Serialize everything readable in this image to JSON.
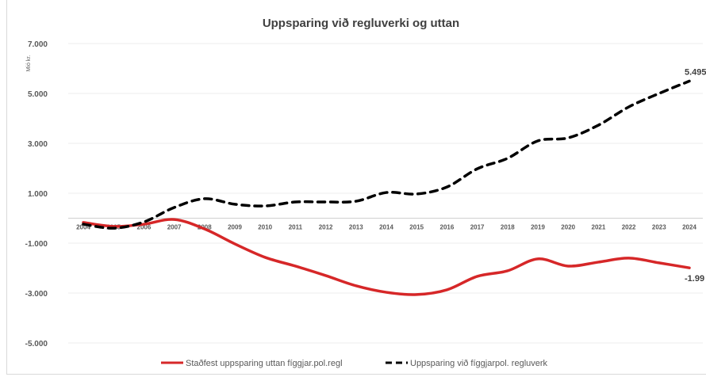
{
  "chart_data": {
    "type": "line",
    "title": "Uppsparing við regluverki og uttan",
    "ylabel": "Mió kr.",
    "xlabel": "",
    "ylim": [
      -5000,
      7000
    ],
    "yticks": [
      7000,
      5000,
      3000,
      1000,
      -1000,
      -3000,
      -5000
    ],
    "ytick_labels": [
      "7.000",
      "5.000",
      "3.000",
      "1.000",
      "-1.000",
      "-3.000",
      "-5.000"
    ],
    "grid": true,
    "legend_position": "bottom",
    "x": [
      "2004",
      "2005",
      "2006",
      "2007",
      "2008",
      "2009",
      "2010",
      "2011",
      "2012",
      "2013",
      "2014",
      "2015",
      "2016",
      "2017",
      "2018",
      "2019",
      "2020",
      "2021",
      "2022",
      "2023",
      "2024"
    ],
    "series": [
      {
        "name": "Staðfest uppsparing uttan fíggjar.pol.regl",
        "color": "#d62728",
        "style": "solid",
        "values": [
          -170,
          -330,
          -240,
          -50,
          -430,
          -1030,
          -1570,
          -1920,
          -2300,
          -2710,
          -2970,
          -3060,
          -2870,
          -2330,
          -2110,
          -1630,
          -1920,
          -1760,
          -1600,
          -1790,
          -1990
        ],
        "end_label": "-1.99"
      },
      {
        "name": "Uppsparing við fíggjarpol. regluverk",
        "color": "#000000",
        "style": "dashed",
        "values": [
          -240,
          -400,
          -150,
          430,
          780,
          560,
          490,
          650,
          650,
          680,
          1030,
          970,
          1250,
          1980,
          2400,
          3100,
          3220,
          3730,
          4460,
          5000,
          5495
        ],
        "end_label": "5.495"
      }
    ]
  }
}
